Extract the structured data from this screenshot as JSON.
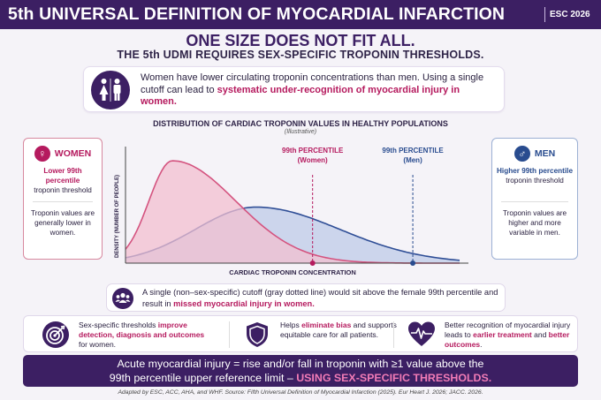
{
  "header": {
    "title": "5th UNIVERSAL DEFINITION OF MYOCARDIAL INFARCTION",
    "badge": "ESC 2026"
  },
  "headline": "ONE SIZE DOES NOT FIT ALL.",
  "subhead": "THE 5th UDMI REQUIRES SEX-SPECIFIC TROPONIN THRESHOLDS.",
  "intro": {
    "text_plain": "Women have lower circulating troponin concentrations than men. Using a single cutoff can lead to ",
    "text_accent": "systematic under-recognition of myocardial injury in women.",
    "icon": "restroom-icon"
  },
  "distribution": {
    "title": "DISTRIBUTION OF CARDIAC TROPONIN VALUES IN HEALTHY POPULATIONS",
    "subtitle": "(Illustrative)"
  },
  "women": {
    "heading": "WOMEN",
    "symbol": "♀",
    "threshold_bold": "Lower 99th percentile",
    "threshold_rest": "troponin threshold",
    "detail": "Troponin values are generally lower in women."
  },
  "men": {
    "heading": "MEN",
    "symbol": "♂",
    "threshold_bold": "Higher 99th percentile",
    "threshold_rest": "troponin threshold",
    "detail": "Troponin values are higher and more variable in men."
  },
  "chart_data": {
    "type": "area",
    "xlabel": "CARDIAC TROPONIN CONCENTRATION",
    "ylabel": "DENSITY (NUMBER OF PEOPLE)",
    "series": [
      {
        "name": "Women",
        "color": "#d4537f",
        "fill": "#f2bfd0",
        "peak": 0.14,
        "spread_left": 0.07,
        "spread_right": 0.19,
        "height": 0.95
      },
      {
        "name": "Men",
        "color": "#2f4e96",
        "fill": "#bdcbe8",
        "peak": 0.39,
        "spread_left": 0.18,
        "spread_right": 0.25,
        "height": 0.52
      }
    ],
    "markers": [
      {
        "label_top": "99th PERCENTILE",
        "label_bottom": "(Women)",
        "x": 0.56,
        "color": "#b51a5e"
      },
      {
        "label_top": "99th PERCENTILE",
        "label_bottom": "(Men)",
        "x": 0.86,
        "color": "#294c8f"
      }
    ]
  },
  "note": {
    "text_plain": "A single (non–sex-specific) cutoff (gray dotted line) would sit above the female 99th percentile and result in ",
    "text_accent": "missed myocardial injury in women.",
    "icon": "people-group-icon"
  },
  "benefits": [
    {
      "icon": "target-icon",
      "pre": "Sex-specific thresholds ",
      "bold": "improve detection, diagnosis and outcomes",
      "post": " for women."
    },
    {
      "icon": "shield-icon",
      "pre": "Helps ",
      "bold": "eliminate bias",
      "post": " and supports equitable care for all patients."
    },
    {
      "icon": "heart-pulse-icon",
      "pre": "Better recognition of myocardial injury leads to ",
      "bold": "earlier treatment",
      "mid": " and ",
      "bold2": "better outcomes",
      "post": "."
    }
  ],
  "summary": {
    "line1": "Acute myocardial injury = rise and/or fall in troponin with ≥1 value above the",
    "line2_plain": "99th percentile upper reference limit – ",
    "line2_accent": "USING SEX-SPECIFIC THRESHOLDS."
  },
  "footer": "Adapted by ESC, ACC, AHA, and WHF.   Source: Fifth Universal Definition of Myocardial Infarction (2025). Eur Heart J. 2026; JACC. 2026."
}
